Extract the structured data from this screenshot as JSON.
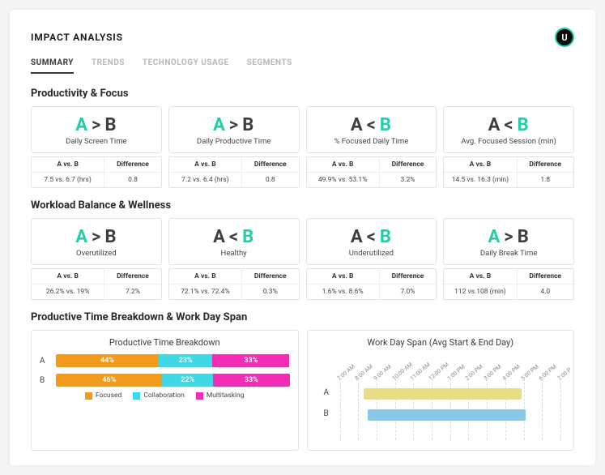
{
  "page": {
    "title": "IMPACT ANALYSIS",
    "avatar_letter": "U"
  },
  "colors": {
    "accent": "#1fcfa8",
    "text_dark": "#3e3e3e",
    "focused": "#f29b1d",
    "collaboration": "#3fd9e6",
    "multitasking": "#f22cb4",
    "span_a": "#e7dd86",
    "span_b": "#88c7e6",
    "grid": "#dddddd"
  },
  "tabs": [
    {
      "label": "SUMMARY",
      "active": true
    },
    {
      "label": "TRENDS",
      "active": false
    },
    {
      "label": "TECHNOLOGY USAGE",
      "active": false
    },
    {
      "label": "SEGMENTS",
      "active": false
    }
  ],
  "sections": {
    "productivity_focus": {
      "title": "Productivity & Focus",
      "cards": [
        {
          "a": "A",
          "op": ">",
          "b": "B",
          "winner": "A",
          "label": "Daily Screen Time",
          "avb_header": "A vs. B",
          "diff_header": "Difference",
          "avb": "7.5 vs. 6.7 (hrs)",
          "diff": "0.8"
        },
        {
          "a": "A",
          "op": ">",
          "b": "B",
          "winner": "A",
          "label": "Daily Productive Time",
          "avb_header": "A vs. B",
          "diff_header": "Difference",
          "avb": "7.2 vs. 6.4 (hrs)",
          "diff": "0.8"
        },
        {
          "a": "A",
          "op": "<",
          "b": "B",
          "winner": "B",
          "label": "% Focused Daily Time",
          "avb_header": "A vs. B",
          "diff_header": "Difference",
          "avb": "49.9% vs. 53.1%",
          "diff": "3.2%"
        },
        {
          "a": "A",
          "op": "<",
          "b": "B",
          "winner": "B",
          "label": "Avg. Focused Session (min)",
          "avb_header": "A vs. B",
          "diff_header": "Difference",
          "avb": "14.5 vs. 16.3 (min)",
          "diff": "1.8"
        }
      ]
    },
    "workload_balance": {
      "title": "Workload Balance & Wellness",
      "cards": [
        {
          "a": "A",
          "op": ">",
          "b": "B",
          "winner": "A",
          "label": "Overutilized",
          "avb_header": "A vs. B",
          "diff_header": "Difference",
          "avb": "26.2% vs. 19%",
          "diff": "7.2%"
        },
        {
          "a": "A",
          "op": "<",
          "b": "B",
          "winner": "B",
          "label": "Healthy",
          "avb_header": "A vs. B",
          "diff_header": "Difference",
          "avb": "72.1% vs. 72.4%",
          "diff": "0.3%"
        },
        {
          "a": "A",
          "op": "<",
          "b": "B",
          "winner": "B",
          "label": "Underutilized",
          "avb_header": "A vs. B",
          "diff_header": "Difference",
          "avb": "1.6% vs. 8.6%",
          "diff": "7.0%"
        },
        {
          "a": "A",
          "op": ">",
          "b": "B",
          "winner": "A",
          "label": "Daily Break Time",
          "avb_header": "A vs. B",
          "diff_header": "Difference",
          "avb": "112 vs.108 (min)",
          "diff": "4.0"
        }
      ]
    }
  },
  "breakdown": {
    "section_title": "Productive Time Breakdown & Work Day Span",
    "title": "Productive Time Breakdown",
    "series_labels": [
      "A",
      "B"
    ],
    "segments": [
      "Focused",
      "Collaboration",
      "Multitasking"
    ],
    "segment_colors": [
      "#f29b1d",
      "#3fd9e6",
      "#f22cb4"
    ],
    "rows": [
      {
        "label": "A",
        "values": [
          44,
          23,
          33
        ]
      },
      {
        "label": "B",
        "values": [
          46,
          22,
          33
        ]
      }
    ]
  },
  "workday_span": {
    "title": "Work Day Span (Avg Start & End Day)",
    "time_labels": [
      "7:00 AM",
      "8:00 AM",
      "9:00 AM",
      "10:00 AM",
      "11:00 AM",
      "12:00 PM",
      "1:00 PM",
      "2:00 PM",
      "3:00 PM",
      "4:00 PM",
      "5:00 PM",
      "6:00 PM",
      "7:00 P"
    ],
    "domain_hours": [
      7,
      19
    ],
    "rows": [
      {
        "label": "A",
        "start_hour": 8.3,
        "end_hour": 16.9,
        "color": "#e7dd86"
      },
      {
        "label": "B",
        "start_hour": 8.5,
        "end_hour": 17.1,
        "color": "#88c7e6"
      }
    ]
  }
}
